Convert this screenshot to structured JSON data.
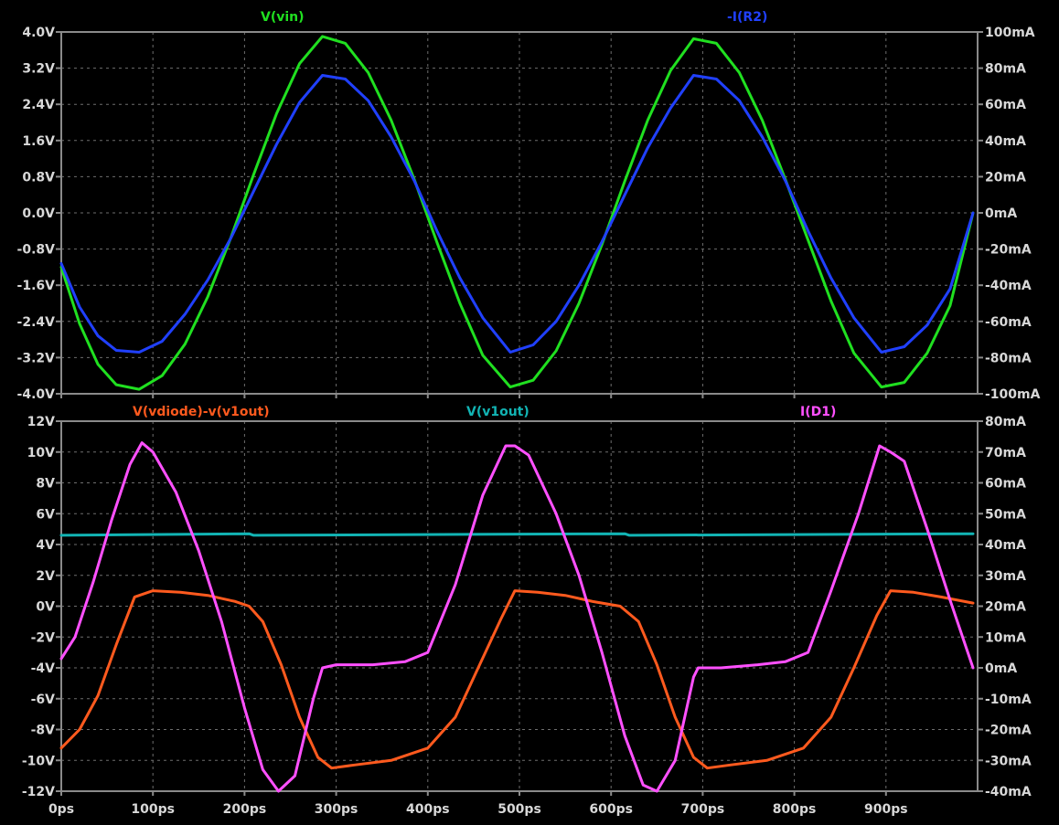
{
  "chart_data": [
    {
      "type": "line",
      "xlim": [
        0,
        1000
      ],
      "x_ticks": [
        "0ps",
        "100ps",
        "200ps",
        "300ps",
        "400ps",
        "500ps",
        "600ps",
        "700ps",
        "800ps",
        "900ps"
      ],
      "y_left_ticks": [
        "4.0V",
        "3.2V",
        "2.4V",
        "1.6V",
        "0.8V",
        "0.0V",
        "-0.8V",
        "-1.6V",
        "-2.4V",
        "-3.2V",
        "-4.0V"
      ],
      "y_left_lim": [
        -4.0,
        4.0
      ],
      "y_right_ticks": [
        "100mA",
        "80mA",
        "60mA",
        "40mA",
        "20mA",
        "0mA",
        "-20mA",
        "-40mA",
        "-60mA",
        "-80mA",
        "-100mA"
      ],
      "y_right_lim": [
        -100,
        100
      ],
      "grid": true,
      "series": [
        {
          "name": "V(vin)",
          "color": "#20e020",
          "axis": "left",
          "x": [
            0,
            20,
            40,
            60,
            85,
            110,
            135,
            160,
            185,
            210,
            235,
            260,
            285,
            310,
            335,
            360,
            385,
            410,
            435,
            460,
            490,
            515,
            540,
            565,
            590,
            615,
            640,
            665,
            690,
            715,
            740,
            765,
            790,
            815,
            840,
            865,
            895,
            920,
            945,
            970,
            995
          ],
          "y": [
            -1.2,
            -2.45,
            -3.35,
            -3.8,
            -3.9,
            -3.6,
            -2.9,
            -1.85,
            -0.55,
            0.85,
            2.2,
            3.3,
            3.9,
            3.75,
            3.1,
            2.05,
            0.75,
            -0.65,
            -2.0,
            -3.15,
            -3.85,
            -3.7,
            -3.05,
            -2.0,
            -0.7,
            0.7,
            2.05,
            3.15,
            3.85,
            3.75,
            3.1,
            2.05,
            0.75,
            -0.6,
            -1.95,
            -3.1,
            -3.85,
            -3.75,
            -3.1,
            -2.05,
            0.0
          ]
        },
        {
          "name": "-I(R2)",
          "color": "#2040ff",
          "axis": "right",
          "x": [
            0,
            20,
            40,
            60,
            85,
            110,
            135,
            160,
            185,
            210,
            235,
            260,
            285,
            310,
            335,
            360,
            385,
            410,
            435,
            460,
            490,
            515,
            540,
            565,
            590,
            615,
            640,
            665,
            690,
            715,
            740,
            765,
            790,
            815,
            840,
            865,
            895,
            920,
            945,
            970,
            995
          ],
          "y": [
            -28,
            -52,
            -68,
            -76,
            -77,
            -71,
            -56,
            -37,
            -14,
            12,
            38,
            61,
            76,
            74,
            62,
            42,
            18,
            -10,
            -36,
            -58,
            -77,
            -73,
            -60,
            -40,
            -16,
            10,
            36,
            58,
            76,
            74,
            62,
            42,
            18,
            -10,
            -36,
            -58,
            -77,
            -74,
            -62,
            -42,
            0
          ]
        }
      ]
    },
    {
      "type": "line",
      "xlim": [
        0,
        1000
      ],
      "x_ticks": [
        "0ps",
        "100ps",
        "200ps",
        "300ps",
        "400ps",
        "500ps",
        "600ps",
        "700ps",
        "800ps",
        "900ps"
      ],
      "y_left_ticks": [
        "12V",
        "10V",
        "8V",
        "6V",
        "4V",
        "2V",
        "0V",
        "-2V",
        "-4V",
        "-6V",
        "-8V",
        "-10V",
        "-12V"
      ],
      "y_left_lim": [
        -12,
        12
      ],
      "y_right_ticks": [
        "80mA",
        "70mA",
        "60mA",
        "50mA",
        "40mA",
        "30mA",
        "20mA",
        "10mA",
        "0mA",
        "-10mA",
        "-20mA",
        "-30mA",
        "-40mA"
      ],
      "y_right_lim": [
        -40,
        80
      ],
      "grid": true,
      "series": [
        {
          "name": "V(vdiode)-v(v1out)",
          "color": "#ff5a1e",
          "axis": "left",
          "x": [
            0,
            20,
            40,
            60,
            80,
            100,
            130,
            160,
            190,
            205,
            220,
            240,
            260,
            280,
            295,
            320,
            360,
            400,
            430,
            455,
            480,
            495,
            520,
            550,
            580,
            610,
            630,
            650,
            670,
            690,
            705,
            730,
            770,
            810,
            840,
            865,
            890,
            905,
            930,
            960,
            995
          ],
          "y": [
            -9.2,
            -8.0,
            -5.8,
            -2.5,
            0.6,
            1.0,
            0.9,
            0.7,
            0.3,
            0.0,
            -1.0,
            -3.8,
            -7.2,
            -9.8,
            -10.5,
            -10.3,
            -10.0,
            -9.2,
            -7.2,
            -4.0,
            -0.8,
            1.0,
            0.9,
            0.7,
            0.3,
            0.0,
            -1.0,
            -3.8,
            -7.2,
            -9.8,
            -10.5,
            -10.3,
            -10.0,
            -9.2,
            -7.2,
            -4.0,
            -0.6,
            1.0,
            0.9,
            0.6,
            0.2
          ]
        },
        {
          "name": "V(v1out)",
          "color": "#12b4b4",
          "axis": "left",
          "x": [
            0,
            205,
            210,
            615,
            620,
            995
          ],
          "y": [
            4.6,
            4.7,
            4.6,
            4.7,
            4.6,
            4.7
          ]
        },
        {
          "name": "I(D1)",
          "color": "#ff50ff",
          "axis": "right",
          "x": [
            0,
            15,
            35,
            55,
            75,
            88,
            100,
            125,
            150,
            175,
            200,
            220,
            237,
            255,
            275,
            285,
            300,
            340,
            375,
            400,
            430,
            460,
            485,
            495,
            510,
            540,
            565,
            590,
            615,
            635,
            650,
            670,
            690,
            695,
            720,
            760,
            790,
            815,
            840,
            870,
            893,
            905,
            920,
            945,
            970,
            995
          ],
          "y": [
            3,
            10,
            28,
            48,
            66,
            73,
            70,
            57,
            38,
            15,
            -13,
            -33,
            -40,
            -35,
            -10,
            0,
            1,
            1,
            2,
            5,
            27,
            56,
            72,
            72,
            69,
            50,
            30,
            5,
            -22,
            -38,
            -40,
            -30,
            -3,
            0,
            0,
            1,
            2,
            5,
            25,
            50,
            72,
            70,
            67,
            45,
            22,
            0
          ]
        }
      ]
    }
  ]
}
